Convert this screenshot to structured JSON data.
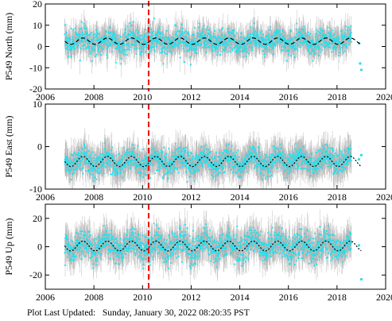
{
  "colors": {
    "points": "#22e0ee",
    "errorbars": "#a9a9a9",
    "model": "#000000",
    "event_line": "#ee1111"
  },
  "footer": {
    "label": "Plot Last Updated:",
    "timestamp": "Sunday, January 30, 2022 08:20:35 PST"
  },
  "chart_data": [
    {
      "type": "scatter",
      "ylabel": "P549 North (mm)",
      "xlim": [
        2006,
        2020
      ],
      "ylim": [
        -20,
        20
      ],
      "xticks": [
        2006,
        2008,
        2010,
        2012,
        2014,
        2016,
        2018,
        2020
      ],
      "yticks": [
        -20,
        -10,
        0,
        10,
        20
      ],
      "event_line_x": 2010.25,
      "grid": false,
      "data_start": 2006.8,
      "data_end": 2018.6,
      "mean": 2.5,
      "seasonal_amplitude": 1.5,
      "scatter_sd": 3.0,
      "errorbar_half": 5.0,
      "late_points": [
        {
          "x": 2018.9,
          "y": 1.5
        },
        {
          "x": 2018.95,
          "y": -8
        },
        {
          "x": 2019.0,
          "y": -11
        }
      ]
    },
    {
      "type": "scatter",
      "ylabel": "P549 East (mm)",
      "xlim": [
        2006,
        2020
      ],
      "ylim": [
        -10,
        10
      ],
      "xticks": [
        2006,
        2008,
        2010,
        2012,
        2014,
        2016,
        2018,
        2020
      ],
      "yticks": [
        -10,
        0,
        10
      ],
      "event_line_x": 2010.25,
      "grid": false,
      "data_start": 2006.8,
      "data_end": 2018.6,
      "mean": -3.5,
      "seasonal_amplitude": 1.2,
      "scatter_sd": 1.4,
      "errorbar_half": 3.0,
      "late_points": [
        {
          "x": 2018.9,
          "y": -3
        },
        {
          "x": 2019.0,
          "y": -2
        }
      ]
    },
    {
      "type": "scatter",
      "ylabel": "P549 Up (mm)",
      "xlim": [
        2006,
        2020
      ],
      "ylim": [
        -30,
        30
      ],
      "xticks": [
        2006,
        2008,
        2010,
        2012,
        2014,
        2016,
        2018,
        2020
      ],
      "yticks": [
        -20,
        0,
        20
      ],
      "event_line_x": 2010.25,
      "grid": false,
      "data_start": 2006.8,
      "data_end": 2018.6,
      "mean": 0.5,
      "seasonal_amplitude": 3.5,
      "scatter_sd": 5.0,
      "errorbar_half": 9.0,
      "late_points": [
        {
          "x": 2018.9,
          "y": 1
        },
        {
          "x": 2019.0,
          "y": -23
        }
      ]
    }
  ]
}
